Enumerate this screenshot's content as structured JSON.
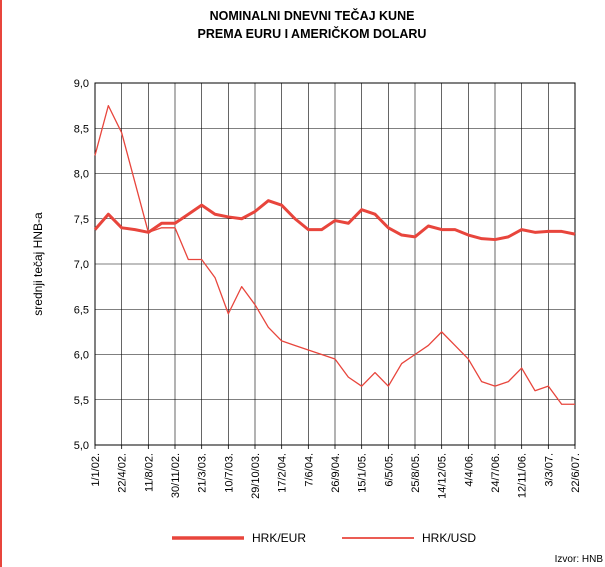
{
  "chart_data": {
    "type": "line",
    "title": "NOMINALNI DNEVNI TEČAJ KUNE",
    "subtitle": "PREMA EURU I AMERIČKOM DOLARU",
    "y_label": "srednji tečaj HNB-a",
    "source": "Izvor: HNB",
    "categories": [
      "1/1/02.",
      null,
      "22/4/02.",
      null,
      "11/8/02.",
      null,
      "30/11/02.",
      null,
      "21/3/03.",
      null,
      "10/7/03.",
      null,
      "29/10/03.",
      null,
      "17/2/04.",
      null,
      "7/6/04.",
      null,
      "26/9/04.",
      null,
      "15/1/05.",
      null,
      "6/5/05.",
      null,
      "25/8/05.",
      null,
      "14/12/05.",
      null,
      "4/4/06.",
      null,
      "24/7/06.",
      null,
      "12/11/06.",
      null,
      "3/3/07.",
      null,
      "22/6/07."
    ],
    "series": [
      {
        "name": "HRK/EUR",
        "color": "#e8453c",
        "width": 3,
        "values": [
          7.38,
          7.55,
          7.4,
          7.38,
          7.35,
          7.45,
          7.45,
          7.55,
          7.65,
          7.55,
          7.52,
          7.5,
          7.58,
          7.7,
          7.65,
          7.5,
          7.38,
          7.38,
          7.48,
          7.45,
          7.6,
          7.55,
          7.4,
          7.32,
          7.3,
          7.42,
          7.38,
          7.38,
          7.32,
          7.28,
          7.27,
          7.3,
          7.38,
          7.35,
          7.36,
          7.36,
          7.33
        ]
      },
      {
        "name": "HRK/USD",
        "color": "#e8453c",
        "width": 1.3,
        "values": [
          8.2,
          8.75,
          8.45,
          7.9,
          7.35,
          7.4,
          7.4,
          7.05,
          7.05,
          6.85,
          6.45,
          6.75,
          6.55,
          6.3,
          6.15,
          6.1,
          6.05,
          6.0,
          5.95,
          5.75,
          5.65,
          5.8,
          5.65,
          5.9,
          6.0,
          6.1,
          6.25,
          6.1,
          5.95,
          5.7,
          5.65,
          5.7,
          5.85,
          5.6,
          5.65,
          5.45,
          5.45
        ]
      }
    ],
    "ylim": [
      5,
      9
    ],
    "yticks": [
      {
        "value": 5,
        "label": "5,0"
      },
      {
        "value": 5.5,
        "label": "5,5"
      },
      {
        "value": 6,
        "label": "6,0"
      },
      {
        "value": 6.5,
        "label": "6,5"
      },
      {
        "value": 7,
        "label": "7,0"
      },
      {
        "value": 7.5,
        "label": "7,5"
      },
      {
        "value": 8,
        "label": "8,0"
      },
      {
        "value": 8.5,
        "label": "8,5"
      },
      {
        "value": 9,
        "label": "9,0"
      }
    ],
    "grid": true
  }
}
